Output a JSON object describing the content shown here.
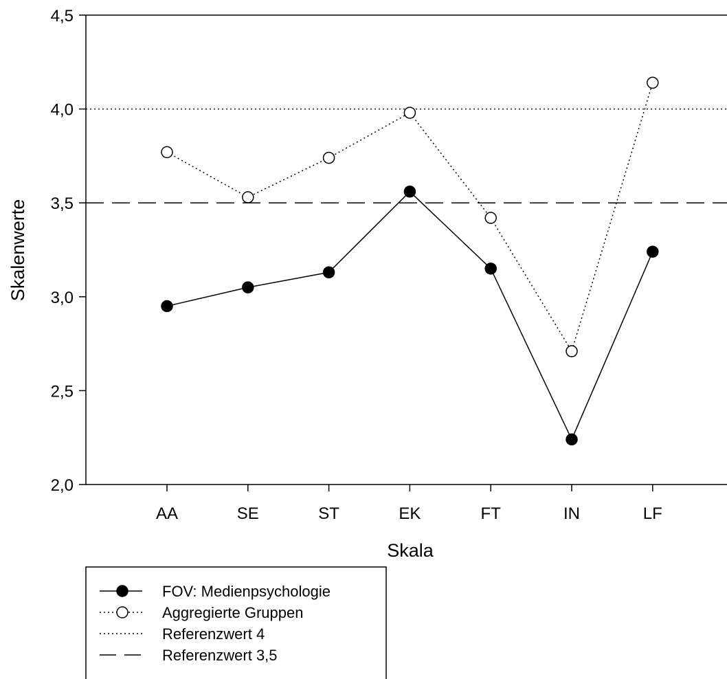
{
  "chart_data": {
    "type": "line",
    "title": "",
    "xlabel": "Skala",
    "ylabel": "Skalenwerte",
    "categories": [
      "AA",
      "SE",
      "ST",
      "EK",
      "FT",
      "IN",
      "LF"
    ],
    "ylim": [
      2.0,
      4.5
    ],
    "yticks": [
      "2,0",
      "2,5",
      "3,0",
      "3,5",
      "4,0",
      "4,5"
    ],
    "yticks_values": [
      2.0,
      2.5,
      3.0,
      3.5,
      4.0,
      4.5
    ],
    "grid": false,
    "legend_position": "bottom-left",
    "series": [
      {
        "name": "FOV: Medienpsychologie",
        "style": "solid",
        "marker": "filled-circle",
        "values": [
          2.95,
          3.05,
          3.13,
          3.56,
          3.15,
          2.24,
          3.24
        ]
      },
      {
        "name": "Aggregierte Gruppen",
        "style": "dotted",
        "marker": "open-circle",
        "values": [
          3.77,
          3.53,
          3.74,
          3.98,
          3.42,
          2.71,
          4.14
        ]
      }
    ],
    "reference_lines": [
      {
        "name": "Referenzwert 4",
        "value": 4.0,
        "style": "dotted"
      },
      {
        "name": "Referenzwert 3,5",
        "value": 3.5,
        "style": "dashed"
      }
    ]
  }
}
